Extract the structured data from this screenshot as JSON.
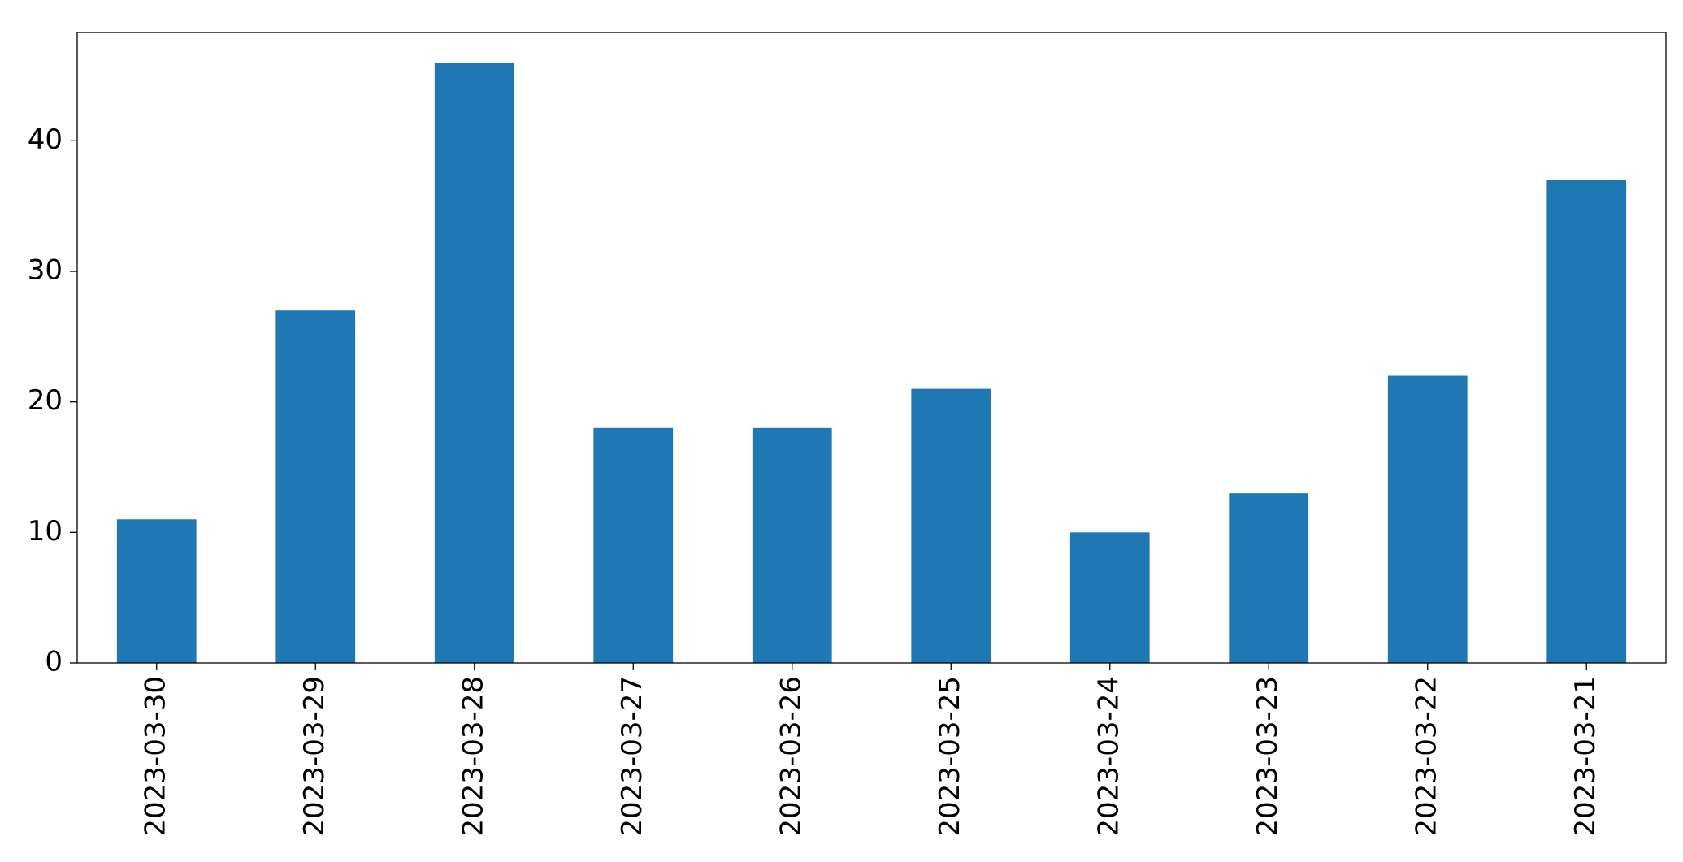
{
  "chart_data": {
    "type": "bar",
    "categories": [
      "2023-03-30",
      "2023-03-29",
      "2023-03-28",
      "2023-03-27",
      "2023-03-26",
      "2023-03-25",
      "2023-03-24",
      "2023-03-23",
      "2023-03-22",
      "2023-03-21"
    ],
    "values": [
      11,
      27,
      46,
      18,
      18,
      21,
      10,
      13,
      22,
      37
    ],
    "color": "#1f77b4",
    "ylim": [
      0,
      48.3
    ],
    "yticks": [
      0,
      10,
      20,
      30,
      40
    ],
    "grid": false
  }
}
